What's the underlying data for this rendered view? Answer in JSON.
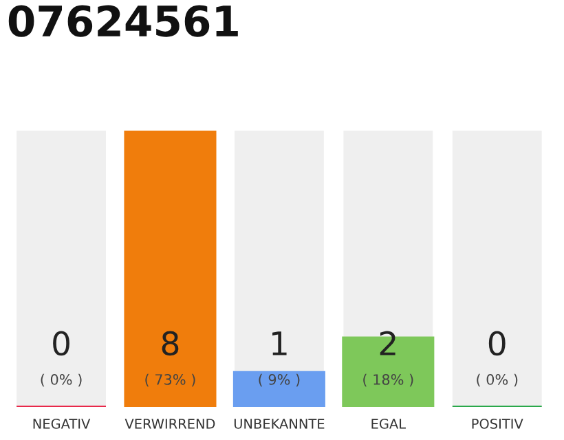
{
  "chart_data": {
    "type": "bar",
    "title": "07624561",
    "categories": [
      "NEGATIV",
      "VERWIRREND",
      "UNBEKANNTE",
      "EGAL",
      "POSITIV"
    ],
    "values": [
      0,
      8,
      1,
      2,
      0
    ],
    "colors": [
      "#e8294a",
      "#f07d0c",
      "#6a9ef0",
      "#7ec85a",
      "#2aa84a"
    ],
    "ylim": [
      0,
      8
    ],
    "data_labels": true,
    "annotations": [
      "( 0% )",
      "( 73% )",
      "( 9% )",
      "( 18% )",
      "( 0% )"
    ],
    "grid": false
  }
}
